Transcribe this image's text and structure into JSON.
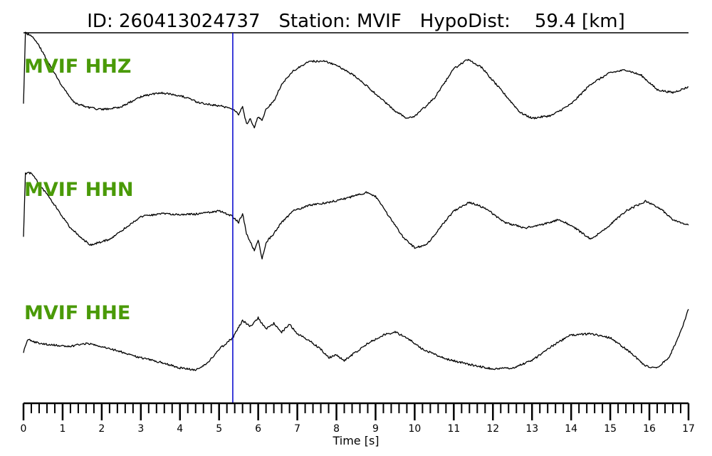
{
  "chart_data": {
    "type": "line",
    "title": {
      "id_label": "ID: 260413024737",
      "station_label": "Station: MVIF",
      "hypodist_label": "HypoDist:",
      "hypodist_value": "59.4 [km]"
    },
    "xlabel": "Time [s]",
    "xlim": [
      0,
      17
    ],
    "x_ticks": [
      0,
      1,
      2,
      3,
      4,
      5,
      6,
      7,
      8,
      9,
      10,
      11,
      12,
      13,
      14,
      15,
      16,
      17
    ],
    "minor_tick_step": 0.2,
    "grid": false,
    "pick_time": 5.35,
    "colors": {
      "trace": "#000000",
      "label": "#4a9a08",
      "pick_line": "#0000cc"
    },
    "series": [
      {
        "name": "MVIF HHZ",
        "points": [
          [
            0,
            -0.3
          ],
          [
            0.05,
            0.95
          ],
          [
            0.2,
            0.9
          ],
          [
            0.4,
            0.72
          ],
          [
            0.7,
            0.35
          ],
          [
            1.0,
            0.0
          ],
          [
            1.3,
            -0.28
          ],
          [
            1.6,
            -0.35
          ],
          [
            2.0,
            -0.4
          ],
          [
            2.5,
            -0.35
          ],
          [
            3.0,
            -0.17
          ],
          [
            3.5,
            -0.1
          ],
          [
            4.0,
            -0.15
          ],
          [
            4.5,
            -0.28
          ],
          [
            5.0,
            -0.33
          ],
          [
            5.35,
            -0.38
          ],
          [
            5.5,
            -0.48
          ],
          [
            5.6,
            -0.35
          ],
          [
            5.7,
            -0.65
          ],
          [
            5.8,
            -0.55
          ],
          [
            5.9,
            -0.72
          ],
          [
            6.0,
            -0.52
          ],
          [
            6.1,
            -0.58
          ],
          [
            6.2,
            -0.4
          ],
          [
            6.4,
            -0.25
          ],
          [
            6.6,
            0.05
          ],
          [
            6.9,
            0.28
          ],
          [
            7.3,
            0.45
          ],
          [
            7.7,
            0.45
          ],
          [
            8.0,
            0.38
          ],
          [
            8.5,
            0.18
          ],
          [
            9.0,
            -0.12
          ],
          [
            9.5,
            -0.42
          ],
          [
            9.8,
            -0.55
          ],
          [
            10.0,
            -0.52
          ],
          [
            10.5,
            -0.2
          ],
          [
            11.0,
            0.32
          ],
          [
            11.35,
            0.48
          ],
          [
            11.7,
            0.35
          ],
          [
            12.2,
            -0.05
          ],
          [
            12.7,
            -0.45
          ],
          [
            13.0,
            -0.55
          ],
          [
            13.5,
            -0.5
          ],
          [
            14.0,
            -0.3
          ],
          [
            14.5,
            0.05
          ],
          [
            15.0,
            0.25
          ],
          [
            15.4,
            0.3
          ],
          [
            15.8,
            0.2
          ],
          [
            16.2,
            -0.05
          ],
          [
            16.6,
            -0.1
          ],
          [
            17,
            0.0
          ]
        ]
      },
      {
        "name": "MVIF HHN",
        "points": [
          [
            0,
            -0.3
          ],
          [
            0.05,
            0.8
          ],
          [
            0.2,
            0.82
          ],
          [
            0.4,
            0.62
          ],
          [
            0.8,
            0.25
          ],
          [
            1.2,
            -0.15
          ],
          [
            1.7,
            -0.45
          ],
          [
            2.2,
            -0.35
          ],
          [
            2.6,
            -0.15
          ],
          [
            3.0,
            0.05
          ],
          [
            3.5,
            0.1
          ],
          [
            4.0,
            0.08
          ],
          [
            4.5,
            0.1
          ],
          [
            5.0,
            0.15
          ],
          [
            5.35,
            0.05
          ],
          [
            5.5,
            -0.05
          ],
          [
            5.6,
            0.1
          ],
          [
            5.7,
            -0.25
          ],
          [
            5.8,
            -0.4
          ],
          [
            5.9,
            -0.55
          ],
          [
            6.0,
            -0.35
          ],
          [
            6.1,
            -0.7
          ],
          [
            6.2,
            -0.4
          ],
          [
            6.4,
            -0.25
          ],
          [
            6.6,
            -0.05
          ],
          [
            6.9,
            0.15
          ],
          [
            7.3,
            0.25
          ],
          [
            7.8,
            0.3
          ],
          [
            8.3,
            0.38
          ],
          [
            8.8,
            0.48
          ],
          [
            9.0,
            0.4
          ],
          [
            9.3,
            0.1
          ],
          [
            9.7,
            -0.3
          ],
          [
            10.0,
            -0.5
          ],
          [
            10.3,
            -0.45
          ],
          [
            10.7,
            -0.1
          ],
          [
            11.0,
            0.15
          ],
          [
            11.4,
            0.3
          ],
          [
            11.8,
            0.2
          ],
          [
            12.3,
            -0.05
          ],
          [
            12.8,
            -0.15
          ],
          [
            13.2,
            -0.1
          ],
          [
            13.7,
            0.0
          ],
          [
            14.1,
            -0.15
          ],
          [
            14.5,
            -0.35
          ],
          [
            14.9,
            -0.15
          ],
          [
            15.4,
            0.15
          ],
          [
            15.9,
            0.32
          ],
          [
            16.3,
            0.18
          ],
          [
            16.6,
            0.0
          ],
          [
            17,
            -0.1
          ]
        ]
      },
      {
        "name": "MVIF HHE",
        "points": [
          [
            0,
            -0.2
          ],
          [
            0.1,
            0.02
          ],
          [
            0.4,
            -0.05
          ],
          [
            0.8,
            -0.08
          ],
          [
            1.2,
            -0.1
          ],
          [
            1.6,
            -0.05
          ],
          [
            2.0,
            -0.1
          ],
          [
            2.5,
            -0.2
          ],
          [
            3.0,
            -0.3
          ],
          [
            3.5,
            -0.38
          ],
          [
            4.0,
            -0.48
          ],
          [
            4.4,
            -0.52
          ],
          [
            4.7,
            -0.4
          ],
          [
            5.0,
            -0.15
          ],
          [
            5.35,
            0.05
          ],
          [
            5.6,
            0.35
          ],
          [
            5.8,
            0.25
          ],
          [
            6.0,
            0.4
          ],
          [
            6.2,
            0.2
          ],
          [
            6.4,
            0.3
          ],
          [
            6.6,
            0.15
          ],
          [
            6.8,
            0.28
          ],
          [
            7.0,
            0.12
          ],
          [
            7.3,
            0.0
          ],
          [
            7.6,
            -0.15
          ],
          [
            7.8,
            -0.3
          ],
          [
            8.0,
            -0.25
          ],
          [
            8.2,
            -0.35
          ],
          [
            8.5,
            -0.2
          ],
          [
            8.8,
            -0.05
          ],
          [
            9.2,
            0.1
          ],
          [
            9.5,
            0.15
          ],
          [
            9.8,
            0.05
          ],
          [
            10.2,
            -0.15
          ],
          [
            10.8,
            -0.32
          ],
          [
            11.4,
            -0.42
          ],
          [
            12.0,
            -0.5
          ],
          [
            12.5,
            -0.48
          ],
          [
            13.0,
            -0.35
          ],
          [
            13.5,
            -0.1
          ],
          [
            14.0,
            0.1
          ],
          [
            14.5,
            0.12
          ],
          [
            15.0,
            0.05
          ],
          [
            15.5,
            -0.2
          ],
          [
            15.9,
            -0.45
          ],
          [
            16.2,
            -0.48
          ],
          [
            16.5,
            -0.3
          ],
          [
            16.8,
            0.15
          ],
          [
            17,
            0.55
          ]
        ]
      }
    ]
  }
}
